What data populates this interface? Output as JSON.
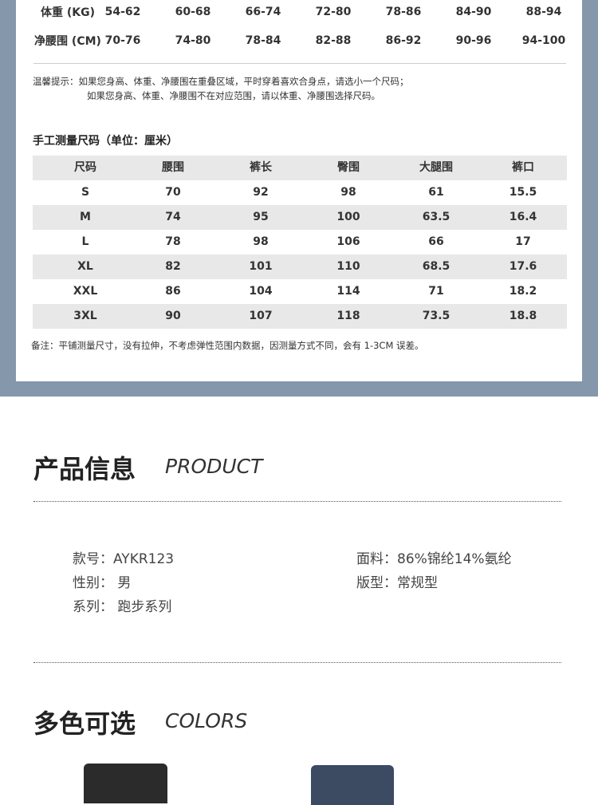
{
  "size_chart": {
    "rows": [
      {
        "label": "体重 (KG)",
        "values": [
          "54-62",
          "60-68",
          "66-74",
          "72-80",
          "78-86",
          "84-90",
          "88-94"
        ]
      },
      {
        "label": "净腰围 (CM)",
        "values": [
          "70-76",
          "74-80",
          "78-84",
          "82-88",
          "86-92",
          "90-96",
          "94-100"
        ]
      }
    ],
    "tip_line1": "温馨提示：如果您身高、体重、净腰围在重叠区域，平时穿着喜欢合身点，请选小一个尺码；",
    "tip_line2": "如果您身高、体重、净腰围不在对应范围，请以体重、净腰围选择尺码。"
  },
  "measure": {
    "title": "手工测量尺码（单位：厘米）",
    "headers": [
      "尺码",
      "腰围",
      "裤长",
      "臀围",
      "大腿围",
      "裤口"
    ],
    "rows": [
      [
        "S",
        "70",
        "92",
        "98",
        "61",
        "15.5"
      ],
      [
        "M",
        "74",
        "95",
        "100",
        "63.5",
        "16.4"
      ],
      [
        "L",
        "78",
        "98",
        "106",
        "66",
        "17"
      ],
      [
        "XL",
        "82",
        "101",
        "110",
        "68.5",
        "17.6"
      ],
      [
        "XXL",
        "86",
        "104",
        "114",
        "71",
        "18.2"
      ],
      [
        "3XL",
        "90",
        "107",
        "118",
        "73.5",
        "18.8"
      ]
    ],
    "note": "备注：平铺测量尺寸，没有拉伸，不考虑弹性范围内数据，因测量方式不同，会有 1-3CM 误差。"
  },
  "product": {
    "title": "产品信息",
    "title_en": "PRODUCT",
    "model": "款号：AYKR123",
    "gender": "性别： 男",
    "series": "系列： 跑步系列",
    "fabric": "面料：86%锦纶14%氨纶",
    "fit": "版型：常规型"
  },
  "colors": {
    "title": "多色可选",
    "title_en": "COLORS",
    "swatches": [
      "#2b2b2b",
      "#3c4a62"
    ]
  },
  "theme": {
    "band": "#8497ab",
    "row_gray": "#e8e8e8"
  }
}
